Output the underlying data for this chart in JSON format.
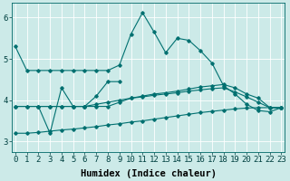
{
  "bg_color": "#cceae8",
  "grid_color": "#ffffff",
  "line_color": "#007070",
  "marker_color": "#007070",
  "series1_x": [
    0,
    1,
    2,
    3,
    4,
    5,
    6,
    7,
    8,
    9,
    10,
    11,
    12,
    13,
    14,
    15,
    16,
    17,
    18,
    19,
    20,
    21,
    22,
    23
  ],
  "series1_y": [
    5.3,
    4.72,
    4.72,
    4.72,
    4.72,
    4.72,
    4.72,
    4.72,
    4.72,
    4.85,
    5.6,
    6.12,
    5.65,
    5.15,
    5.5,
    5.45,
    5.2,
    4.9,
    4.35,
    4.15,
    3.9,
    3.75,
    3.72,
    3.82
  ],
  "series2_x": [
    0,
    1,
    2,
    3,
    4,
    5,
    6,
    7,
    8,
    9,
    10,
    11,
    12,
    13,
    14,
    15,
    16,
    17,
    18,
    19,
    20,
    21,
    22,
    23
  ],
  "series2_y": [
    3.85,
    3.85,
    3.85,
    3.85,
    3.85,
    3.85,
    3.85,
    3.85,
    3.85,
    3.95,
    4.05,
    4.1,
    4.15,
    4.18,
    4.22,
    4.27,
    4.32,
    4.35,
    4.38,
    4.3,
    4.15,
    4.05,
    3.82,
    3.82
  ],
  "series3_x": [
    0,
    1,
    2,
    3,
    4,
    5,
    6,
    7,
    8,
    9,
    10,
    11,
    12,
    13,
    14,
    15,
    16,
    17,
    18,
    19,
    20,
    21,
    22,
    23
  ],
  "series3_y": [
    3.85,
    3.85,
    3.85,
    3.85,
    3.85,
    3.85,
    3.85,
    3.9,
    3.95,
    4.0,
    4.05,
    4.08,
    4.12,
    4.15,
    4.18,
    4.22,
    4.25,
    4.28,
    4.3,
    4.2,
    4.08,
    3.95,
    3.82,
    3.82
  ],
  "series4_x": [
    0,
    1,
    2,
    3,
    4,
    5,
    6,
    7,
    8,
    9,
    10,
    11,
    12,
    13,
    14,
    15,
    16,
    17,
    18,
    19,
    20,
    21,
    22,
    23
  ],
  "series4_y": [
    3.2,
    3.2,
    3.22,
    3.25,
    3.28,
    3.3,
    3.33,
    3.36,
    3.4,
    3.43,
    3.47,
    3.5,
    3.54,
    3.58,
    3.62,
    3.66,
    3.7,
    3.73,
    3.76,
    3.79,
    3.81,
    3.82,
    3.82,
    3.82
  ],
  "series5_x": [
    2,
    3,
    4,
    5,
    6,
    7,
    8,
    9
  ],
  "series5_y": [
    3.85,
    3.2,
    4.3,
    3.85,
    3.85,
    4.1,
    4.45,
    4.45
  ],
  "xlim": [
    0,
    23
  ],
  "ylim": [
    2.75,
    6.35
  ],
  "yticks": [
    3,
    4,
    5,
    6
  ],
  "xticks": [
    0,
    1,
    2,
    3,
    4,
    5,
    6,
    7,
    8,
    9,
    10,
    11,
    12,
    13,
    14,
    15,
    16,
    17,
    18,
    19,
    20,
    21,
    22,
    23
  ],
  "xlabel": "Humidex (Indice chaleur)",
  "xlabel_fontsize": 7.5,
  "tick_fontsize": 6.5,
  "figsize": [
    3.2,
    2.0
  ],
  "dpi": 100
}
